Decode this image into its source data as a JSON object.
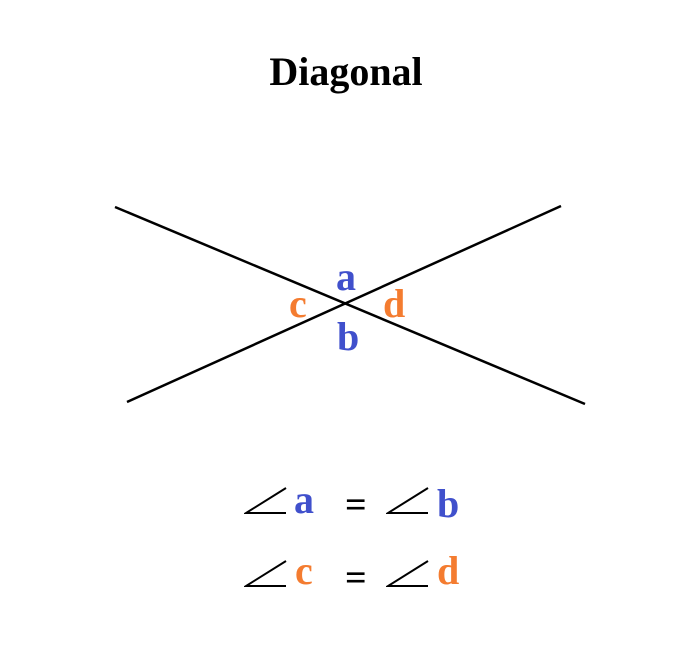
{
  "title": "Diagonal",
  "colors": {
    "blue": "#4050cc",
    "orange": "#f47c30",
    "line": "#000000"
  },
  "labels": {
    "a": "a",
    "b": "b",
    "c": "c",
    "d": "d"
  },
  "equations": [
    {
      "left": "a",
      "op": "=",
      "right": "b",
      "left_color": "blue",
      "right_color": "blue"
    },
    {
      "left": "c",
      "op": "=",
      "right": "d",
      "left_color": "orange",
      "right_color": "orange"
    }
  ],
  "icons": {
    "angle": "angle-symbol-icon"
  }
}
